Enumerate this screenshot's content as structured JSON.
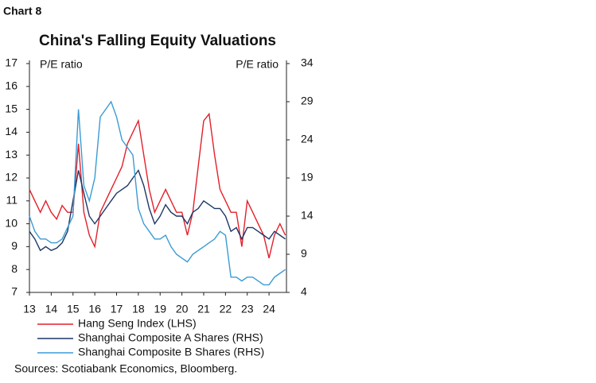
{
  "chart_data": {
    "type": "line",
    "chart_label": "Chart 8",
    "title": "China's Falling Equity Valuations",
    "y_label": "P/E ratio",
    "y2_label": "P/E ratio",
    "source": "Sources: Scotiabank Economics, Bloomberg.",
    "x": [
      13,
      13.25,
      13.5,
      13.75,
      14,
      14.25,
      14.5,
      14.75,
      15,
      15.25,
      15.5,
      15.75,
      16,
      16.25,
      16.5,
      16.75,
      17,
      17.25,
      17.5,
      17.75,
      18,
      18.25,
      18.5,
      18.75,
      19,
      19.25,
      19.5,
      19.75,
      20,
      20.25,
      20.5,
      20.75,
      21,
      21.25,
      21.5,
      21.75,
      22,
      22.25,
      22.5,
      22.75,
      23,
      23.25,
      23.5,
      23.75,
      24,
      24.25,
      24.5,
      24.75
    ],
    "xlim": [
      13,
      24.8
    ],
    "xticks": [
      13,
      14,
      15,
      16,
      17,
      18,
      19,
      20,
      21,
      22,
      23,
      24
    ],
    "ylim": [
      7,
      17
    ],
    "yticks": [
      7,
      8,
      9,
      10,
      11,
      12,
      13,
      14,
      15,
      16,
      17
    ],
    "y2lim": [
      4,
      34
    ],
    "y2ticks": [
      4,
      9,
      14,
      19,
      24,
      29,
      34
    ],
    "series": [
      {
        "name": "Hang Seng Index (LHS)",
        "color": "#e3202a",
        "axis": "y",
        "values": [
          11.5,
          11.0,
          10.5,
          11.0,
          10.5,
          10.2,
          10.8,
          10.5,
          10.5,
          13.5,
          10.5,
          9.5,
          9.0,
          10.5,
          11.0,
          11.5,
          12.0,
          12.5,
          13.5,
          14.0,
          14.5,
          13.0,
          11.5,
          10.5,
          11.0,
          11.5,
          11.0,
          10.5,
          10.5,
          9.5,
          10.5,
          12.5,
          14.5,
          14.8,
          13.0,
          11.5,
          11.0,
          10.5,
          10.5,
          9.0,
          11.0,
          10.5,
          10.0,
          9.5,
          8.5,
          9.5,
          10.0,
          9.5
        ]
      },
      {
        "name": "Shanghai Composite A Shares (RHS)",
        "color": "#1d3766",
        "axis": "y2",
        "values": [
          12,
          11,
          9.5,
          10,
          9.5,
          9.8,
          10.5,
          12,
          16,
          20,
          17,
          14,
          13,
          14,
          15,
          16,
          17,
          17.5,
          18,
          19,
          20,
          18,
          15,
          13,
          14,
          15.5,
          14.5,
          14,
          14,
          13,
          14.5,
          15,
          16,
          15.5,
          15,
          15,
          14,
          12,
          12.5,
          11,
          12.5,
          12.5,
          12,
          11.5,
          11,
          12,
          11.5,
          11
        ]
      },
      {
        "name": "Shanghai Composite B Shares (RHS)",
        "color": "#3a9bd5",
        "axis": "y2",
        "values": [
          14,
          12,
          11,
          11,
          10.5,
          10.5,
          11,
          12.5,
          14,
          28,
          18,
          16,
          19,
          27,
          28,
          29,
          27,
          24,
          23,
          22,
          15,
          13,
          12,
          11,
          11,
          11.5,
          10,
          9,
          8.5,
          8,
          9,
          9.5,
          10,
          10.5,
          11,
          12,
          11.5,
          6,
          6,
          5.5,
          6,
          6,
          5.5,
          5,
          5,
          6,
          6.5,
          7
        ]
      }
    ]
  }
}
